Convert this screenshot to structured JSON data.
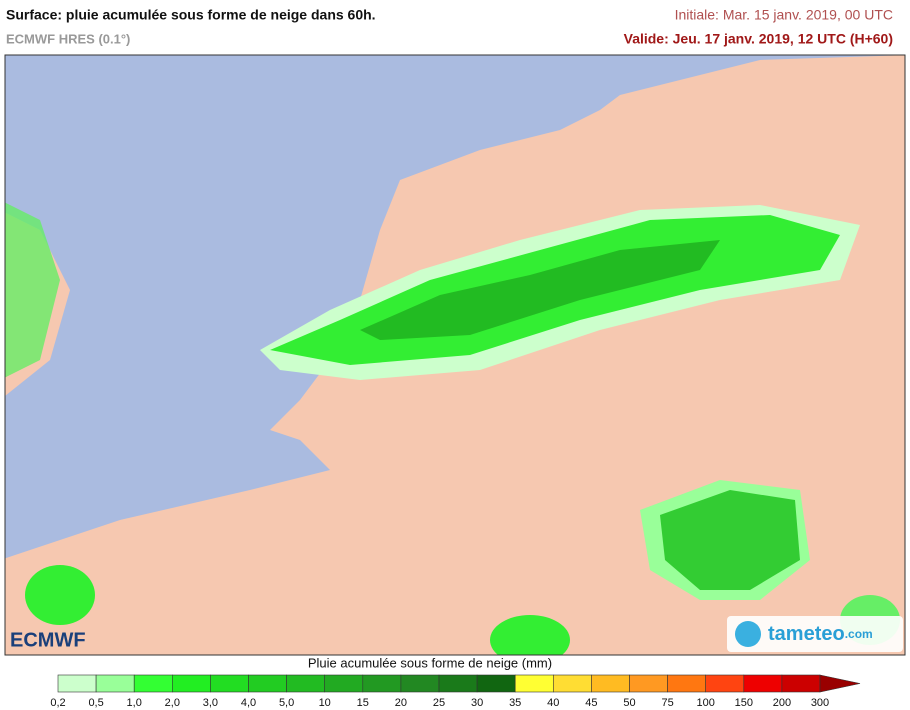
{
  "header": {
    "title": "Surface: pluie acumulée sous forme de neige dans 60h.",
    "model": "ECMWF HRES (0.1°)",
    "initial": "Initiale: Mar. 15 janv. 2019, 00 UTC",
    "valid": "Valide: Jeu. 17 janv. 2019, 12 UTC (H+60)"
  },
  "logos": {
    "left": "ECMWF",
    "right": "tameteo",
    "right_suffix": ".com"
  },
  "legend": {
    "title": "Pluie acumulée sous forme de neige (mm)",
    "labels": [
      "0,2",
      "0,5",
      "1,0",
      "2,0",
      "3,0",
      "4,0",
      "5,0",
      "10",
      "15",
      "20",
      "25",
      "30",
      "35",
      "40",
      "45",
      "50",
      "75",
      "100",
      "150",
      "200",
      "300"
    ],
    "colors": [
      "#ccffcc",
      "#99ff99",
      "#33ff33",
      "#22ee22",
      "#22dd22",
      "#22cc22",
      "#22bb22",
      "#22aa22",
      "#229922",
      "#228822",
      "#1a7a1a",
      "#116611",
      "#ffff33",
      "#ffdd33",
      "#ffbb22",
      "#ff9922",
      "#ff7711",
      "#ff4411",
      "#ee0000",
      "#cc0000"
    ],
    "overflow_color": "#990000"
  }
}
